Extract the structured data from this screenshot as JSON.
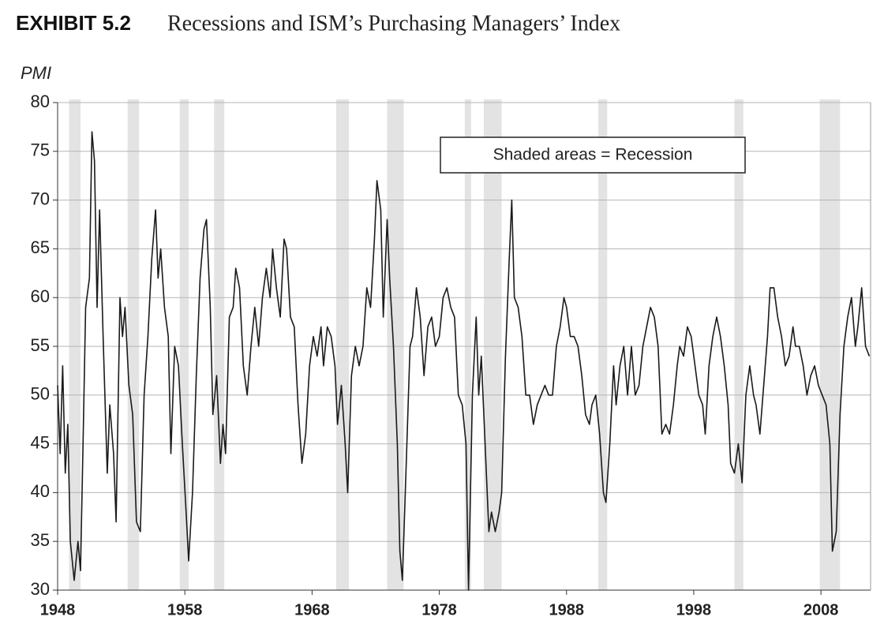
{
  "chart_data": {
    "type": "line",
    "title": "EXHIBIT 5.2",
    "subtitle": "Recessions and ISM’s Purchasing Managers’ Index",
    "y_label": "PMI",
    "annotation": "Shaded areas = Recession",
    "color": "#1a1a1a",
    "recession_color": "#e3e3e3",
    "grid": true,
    "xlim": [
      1948,
      2011.9
    ],
    "xticks": [
      1948,
      1958,
      1968,
      1978,
      1988,
      1998,
      2008
    ],
    "ylim": [
      30,
      80
    ],
    "yticks": [
      30,
      35,
      40,
      45,
      50,
      55,
      60,
      65,
      70,
      75,
      80
    ],
    "recessions": [
      [
        1948.9,
        1949.8
      ],
      [
        1953.5,
        1954.4
      ],
      [
        1957.6,
        1958.3
      ],
      [
        1960.3,
        1961.1
      ],
      [
        1969.9,
        1970.9
      ],
      [
        1973.9,
        1975.2
      ],
      [
        1980.0,
        1980.5
      ],
      [
        1981.5,
        1982.9
      ],
      [
        1990.5,
        1991.2
      ],
      [
        2001.2,
        2001.9
      ],
      [
        2007.9,
        2009.5
      ]
    ],
    "x": [
      1948.0,
      1948.2,
      1948.4,
      1948.6,
      1948.8,
      1949.0,
      1949.3,
      1949.6,
      1949.8,
      1950.0,
      1950.2,
      1950.5,
      1950.7,
      1950.9,
      1951.1,
      1951.3,
      1951.6,
      1951.9,
      1952.1,
      1952.4,
      1952.6,
      1952.9,
      1953.1,
      1953.3,
      1953.6,
      1953.9,
      1954.2,
      1954.5,
      1954.8,
      1955.1,
      1955.4,
      1955.7,
      1955.9,
      1956.1,
      1956.4,
      1956.7,
      1956.9,
      1957.2,
      1957.5,
      1957.8,
      1958.1,
      1958.3,
      1958.6,
      1958.9,
      1959.2,
      1959.5,
      1959.7,
      1960.0,
      1960.2,
      1960.5,
      1960.8,
      1961.0,
      1961.2,
      1961.5,
      1961.8,
      1962.0,
      1962.3,
      1962.6,
      1962.9,
      1963.2,
      1963.5,
      1963.8,
      1964.1,
      1964.4,
      1964.7,
      1964.9,
      1965.2,
      1965.5,
      1965.8,
      1966.0,
      1966.3,
      1966.6,
      1966.9,
      1967.2,
      1967.5,
      1967.8,
      1968.1,
      1968.4,
      1968.7,
      1968.9,
      1969.2,
      1969.5,
      1969.8,
      1970.0,
      1970.3,
      1970.6,
      1970.8,
      1971.1,
      1971.4,
      1971.7,
      1972.0,
      1972.3,
      1972.6,
      1972.9,
      1973.1,
      1973.4,
      1973.6,
      1973.9,
      1974.1,
      1974.4,
      1974.7,
      1974.9,
      1975.1,
      1975.4,
      1975.7,
      1975.9,
      1976.2,
      1976.5,
      1976.8,
      1977.1,
      1977.4,
      1977.7,
      1978.0,
      1978.3,
      1978.6,
      1978.9,
      1979.2,
      1979.5,
      1979.8,
      1980.1,
      1980.3,
      1980.6,
      1980.9,
      1981.1,
      1981.3,
      1981.6,
      1981.9,
      1982.1,
      1982.4,
      1982.7,
      1982.9,
      1983.2,
      1983.5,
      1983.7,
      1983.9,
      1984.2,
      1984.5,
      1984.8,
      1985.1,
      1985.4,
      1985.7,
      1986.0,
      1986.3,
      1986.6,
      1986.9,
      1987.2,
      1987.5,
      1987.8,
      1988.0,
      1988.3,
      1988.6,
      1988.9,
      1989.2,
      1989.5,
      1989.8,
      1990.0,
      1990.3,
      1990.6,
      1990.9,
      1991.1,
      1991.4,
      1991.7,
      1991.9,
      1992.2,
      1992.5,
      1992.8,
      1993.1,
      1993.4,
      1993.7,
      1994.0,
      1994.3,
      1994.6,
      1994.9,
      1995.2,
      1995.5,
      1995.8,
      1996.1,
      1996.4,
      1996.7,
      1996.9,
      1997.2,
      1997.5,
      1997.8,
      1998.1,
      1998.4,
      1998.7,
      1998.9,
      1999.2,
      1999.5,
      1999.8,
      2000.1,
      2000.4,
      2000.7,
      2000.9,
      2001.2,
      2001.5,
      2001.8,
      2002.1,
      2002.4,
      2002.7,
      2002.9,
      2003.2,
      2003.5,
      2003.8,
      2004.0,
      2004.3,
      2004.6,
      2004.9,
      2005.2,
      2005.5,
      2005.8,
      2006.0,
      2006.3,
      2006.6,
      2006.9,
      2007.2,
      2007.5,
      2007.8,
      2008.1,
      2008.4,
      2008.7,
      2008.9,
      2009.2,
      2009.5,
      2009.8,
      2010.1,
      2010.4,
      2010.7,
      2010.9,
      2011.2,
      2011.5,
      2011.8
    ],
    "values": [
      51,
      44,
      53,
      42,
      47,
      35,
      31,
      35,
      32,
      45,
      59,
      62,
      77,
      74,
      59,
      69,
      55,
      42,
      49,
      44,
      37,
      60,
      56,
      59,
      51,
      48,
      37,
      36,
      50,
      56,
      64,
      69,
      62,
      65,
      59,
      56,
      44,
      55,
      53,
      45,
      38,
      33,
      40,
      52,
      62,
      67,
      68,
      59,
      48,
      52,
      43,
      47,
      44,
      58,
      59,
      63,
      61,
      53,
      50,
      55,
      59,
      55,
      60,
      63,
      60,
      65,
      61,
      58,
      66,
      65,
      58,
      57,
      49,
      43,
      46,
      53,
      56,
      54,
      57,
      53,
      57,
      56,
      53,
      47,
      51,
      45,
      40,
      52,
      55,
      53,
      55,
      61,
      59,
      66,
      72,
      69,
      58,
      68,
      62,
      55,
      45,
      34,
      31,
      43,
      55,
      56,
      61,
      58,
      52,
      57,
      58,
      55,
      56,
      60,
      61,
      59,
      58,
      50,
      49,
      45,
      30,
      50,
      58,
      50,
      54,
      45,
      36,
      38,
      36,
      38,
      40,
      54,
      64,
      70,
      60,
      59,
      56,
      50,
      50,
      47,
      49,
      50,
      51,
      50,
      50,
      55,
      57,
      60,
      59,
      56,
      56,
      55,
      52,
      48,
      47,
      49,
      50,
      46,
      40,
      39,
      45,
      53,
      49,
      53,
      55,
      50,
      55,
      50,
      51,
      55,
      57,
      59,
      58,
      55,
      46,
      47,
      46,
      49,
      53,
      55,
      54,
      57,
      56,
      53,
      50,
      49,
      46,
      53,
      56,
      58,
      56,
      53,
      49,
      43,
      42,
      45,
      41,
      50,
      53,
      50,
      49,
      46,
      51,
      56,
      61,
      61,
      58,
      56,
      53,
      54,
      57,
      55,
      55,
      53,
      50,
      52,
      53,
      51,
      50,
      49,
      45,
      34,
      36,
      48,
      55,
      58,
      60,
      55,
      57,
      61,
      55,
      54
    ]
  }
}
